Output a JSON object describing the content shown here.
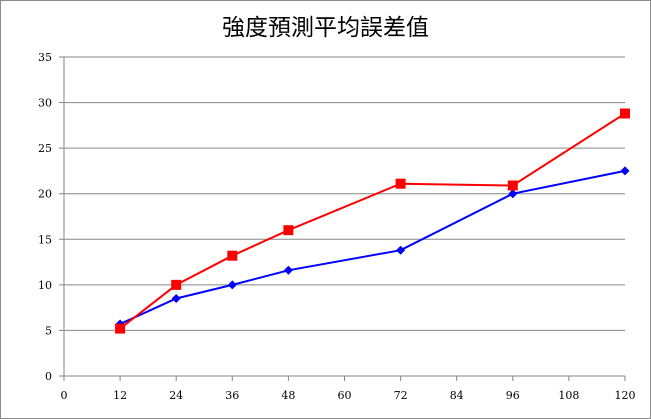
{
  "chart_data": {
    "type": "line",
    "title": "強度預測平均誤差值",
    "xlabel": "",
    "ylabel": "",
    "xlim": [
      0,
      120
    ],
    "ylim": [
      0,
      35
    ],
    "xticks": [
      0,
      12,
      24,
      36,
      48,
      60,
      72,
      84,
      96,
      108,
      120
    ],
    "yticks": [
      0,
      5,
      10,
      15,
      20,
      25,
      30,
      35
    ],
    "grid": true,
    "legend": "none",
    "series": [
      {
        "color": "#0000ff",
        "marker": "diamond",
        "x": [
          12,
          24,
          36,
          48,
          72,
          96,
          120
        ],
        "y": [
          5.7,
          8.5,
          10.0,
          11.6,
          13.8,
          20.0,
          22.5
        ]
      },
      {
        "color": "#ff0000",
        "marker": "square",
        "x": [
          12,
          24,
          36,
          48,
          72,
          96,
          120
        ],
        "y": [
          5.2,
          10.0,
          13.2,
          16.0,
          21.1,
          20.9,
          28.8
        ]
      }
    ]
  }
}
